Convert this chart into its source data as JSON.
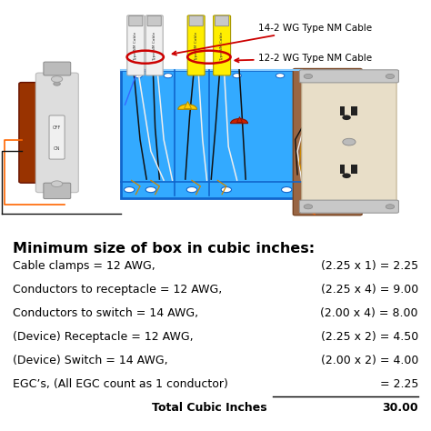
{
  "title": "Minimum size of box in cubic inches:",
  "rows": [
    [
      "Cable clamps = 12 AWG,",
      "(2.25 x 1) = 2.25"
    ],
    [
      "Conductors to receptacle = 12 AWG,",
      "(2.25 x 4) = 9.00"
    ],
    [
      "Conductors to switch = 14 AWG,",
      "(2.00 x 4) = 8.00"
    ],
    [
      "(Device) Receptacle = 12 AWG,",
      "(2.25 x 2) = 4.50"
    ],
    [
      "(Device) Switch = 14 AWG,",
      "(2.00 x 2) = 4.00"
    ],
    [
      "EGC’s, (All EGC count as 1 conductor)",
      "= 2.25"
    ],
    [
      "Total Cubic Inches",
      "30.00"
    ]
  ],
  "label_14": "14-2 WG Type NM Cable",
  "label_12": "12-2 WG Type NM Cable",
  "bg_color": "#ffffff",
  "title_fontsize": 11.5,
  "row_fontsize": 9.0,
  "title_color": "#000000",
  "text_color": "#000000",
  "underline_row": 5,
  "total_row": 6,
  "box_color": "#33AAFF",
  "box_edge_color": "#1166CC",
  "white_cable_color": "#F0F0F0",
  "yellow_cable_color": "#FFEE00",
  "switch_red_color": "#CC2200",
  "switch_plate_color": "#CCCCCC",
  "outlet_cream_color": "#E8DEC8",
  "outlet_brown_color": "#996644",
  "wire_black": "#111111",
  "wire_white": "#EEEEEE",
  "wire_copper": "#CC8800",
  "wire_orange": "#FF6600",
  "wire_blue": "#3366FF",
  "arrow_color": "#CC0000"
}
